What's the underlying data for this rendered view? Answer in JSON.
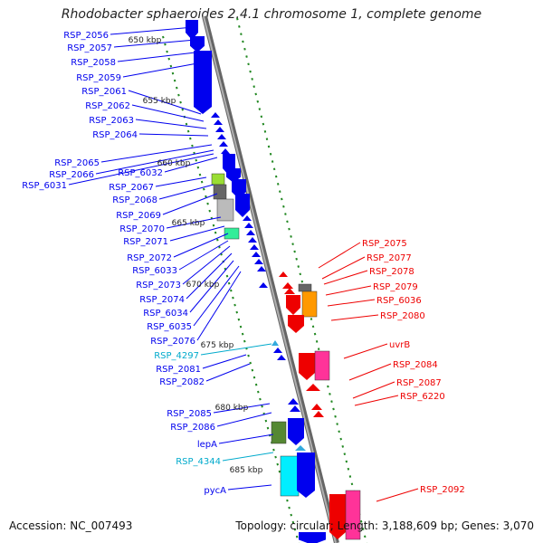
{
  "title": "Rhodobacter sphaeroides 2.4.1 chromosome 1, complete genome",
  "footer": {
    "accession": "Accession: NC_007493",
    "topology": "Topology: circular; Length: 3,188,609 bp; Genes: 3,070"
  },
  "colors": {
    "forward_gene": "#0000ee",
    "reverse_gene": "#ee0000",
    "ncrna_label": "#00aacc",
    "backbone": "#999999",
    "tick": "#228822"
  },
  "ticks": [
    "650 kbp",
    "655 kbp",
    "660 kbp",
    "665 kbp",
    "670 kbp",
    "675 kbp",
    "680 kbp",
    "685 kbp"
  ],
  "left_labels": [
    "RSP_2056",
    "RSP_2057",
    "RSP_2058",
    "RSP_2059",
    "RSP_2061",
    "RSP_2062",
    "RSP_2063",
    "RSP_2064",
    "RSP_2065",
    "RSP_2066",
    "RSP_6032",
    "RSP_6031",
    "RSP_2067",
    "RSP_2068",
    "RSP_2069",
    "RSP_2070",
    "RSP_2071",
    "RSP_2072",
    "RSP_6033",
    "RSP_2073",
    "RSP_2074",
    "RSP_6034",
    "RSP_6035",
    "RSP_2076",
    "RSP_4297",
    "RSP_2081",
    "RSP_2082",
    "RSP_2085",
    "RSP_2086",
    "lepA",
    "RSP_4344",
    "pycA"
  ],
  "right_labels": [
    "RSP_2075",
    "RSP_2077",
    "RSP_2078",
    "RSP_2079",
    "RSP_6036",
    "RSP_2080",
    "uvrB",
    "RSP_2084",
    "RSP_2087",
    "RSP_6220",
    "RSP_2092"
  ]
}
